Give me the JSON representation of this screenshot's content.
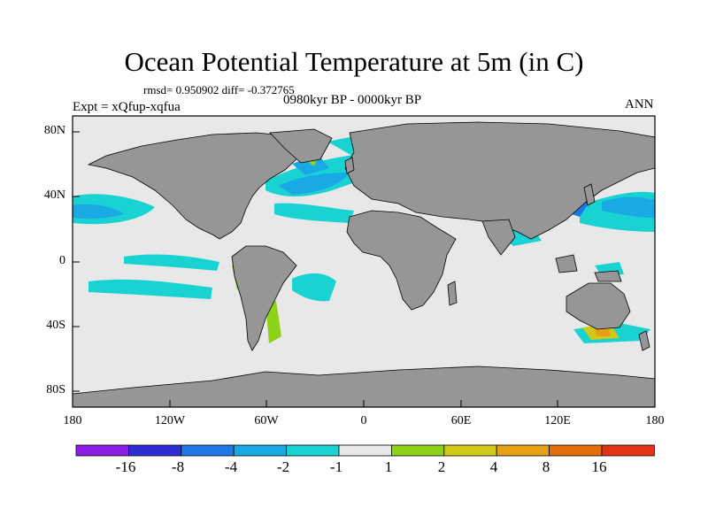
{
  "title": "Ocean Potential Temperature at 5m (in C)",
  "stats": "rmsd= 0.950902 diff= -0.372765",
  "experiment": "Expt = xQfup-xqfua",
  "period": "0980kyr BP - 0000kyr BP",
  "season": "ANN",
  "lat_labels": [
    "80N",
    "40N",
    "0",
    "40S",
    "80S"
  ],
  "lon_labels": [
    "180",
    "120W",
    "60W",
    "0",
    "60E",
    "120E",
    "180"
  ],
  "colorbar": {
    "colors": [
      "#8c1ee6",
      "#2d2dd2",
      "#1e78e6",
      "#19aae6",
      "#19d2d2",
      "#e8e8e8",
      "#8cd219",
      "#d2c819",
      "#e6a014",
      "#e66e0a",
      "#e63214"
    ],
    "labels": [
      "-16",
      "-8",
      "-4",
      "-2",
      "-1",
      "1",
      "2",
      "4",
      "8",
      "16"
    ]
  },
  "land_color": "#969696",
  "ocean_color": "#e8e8e8"
}
